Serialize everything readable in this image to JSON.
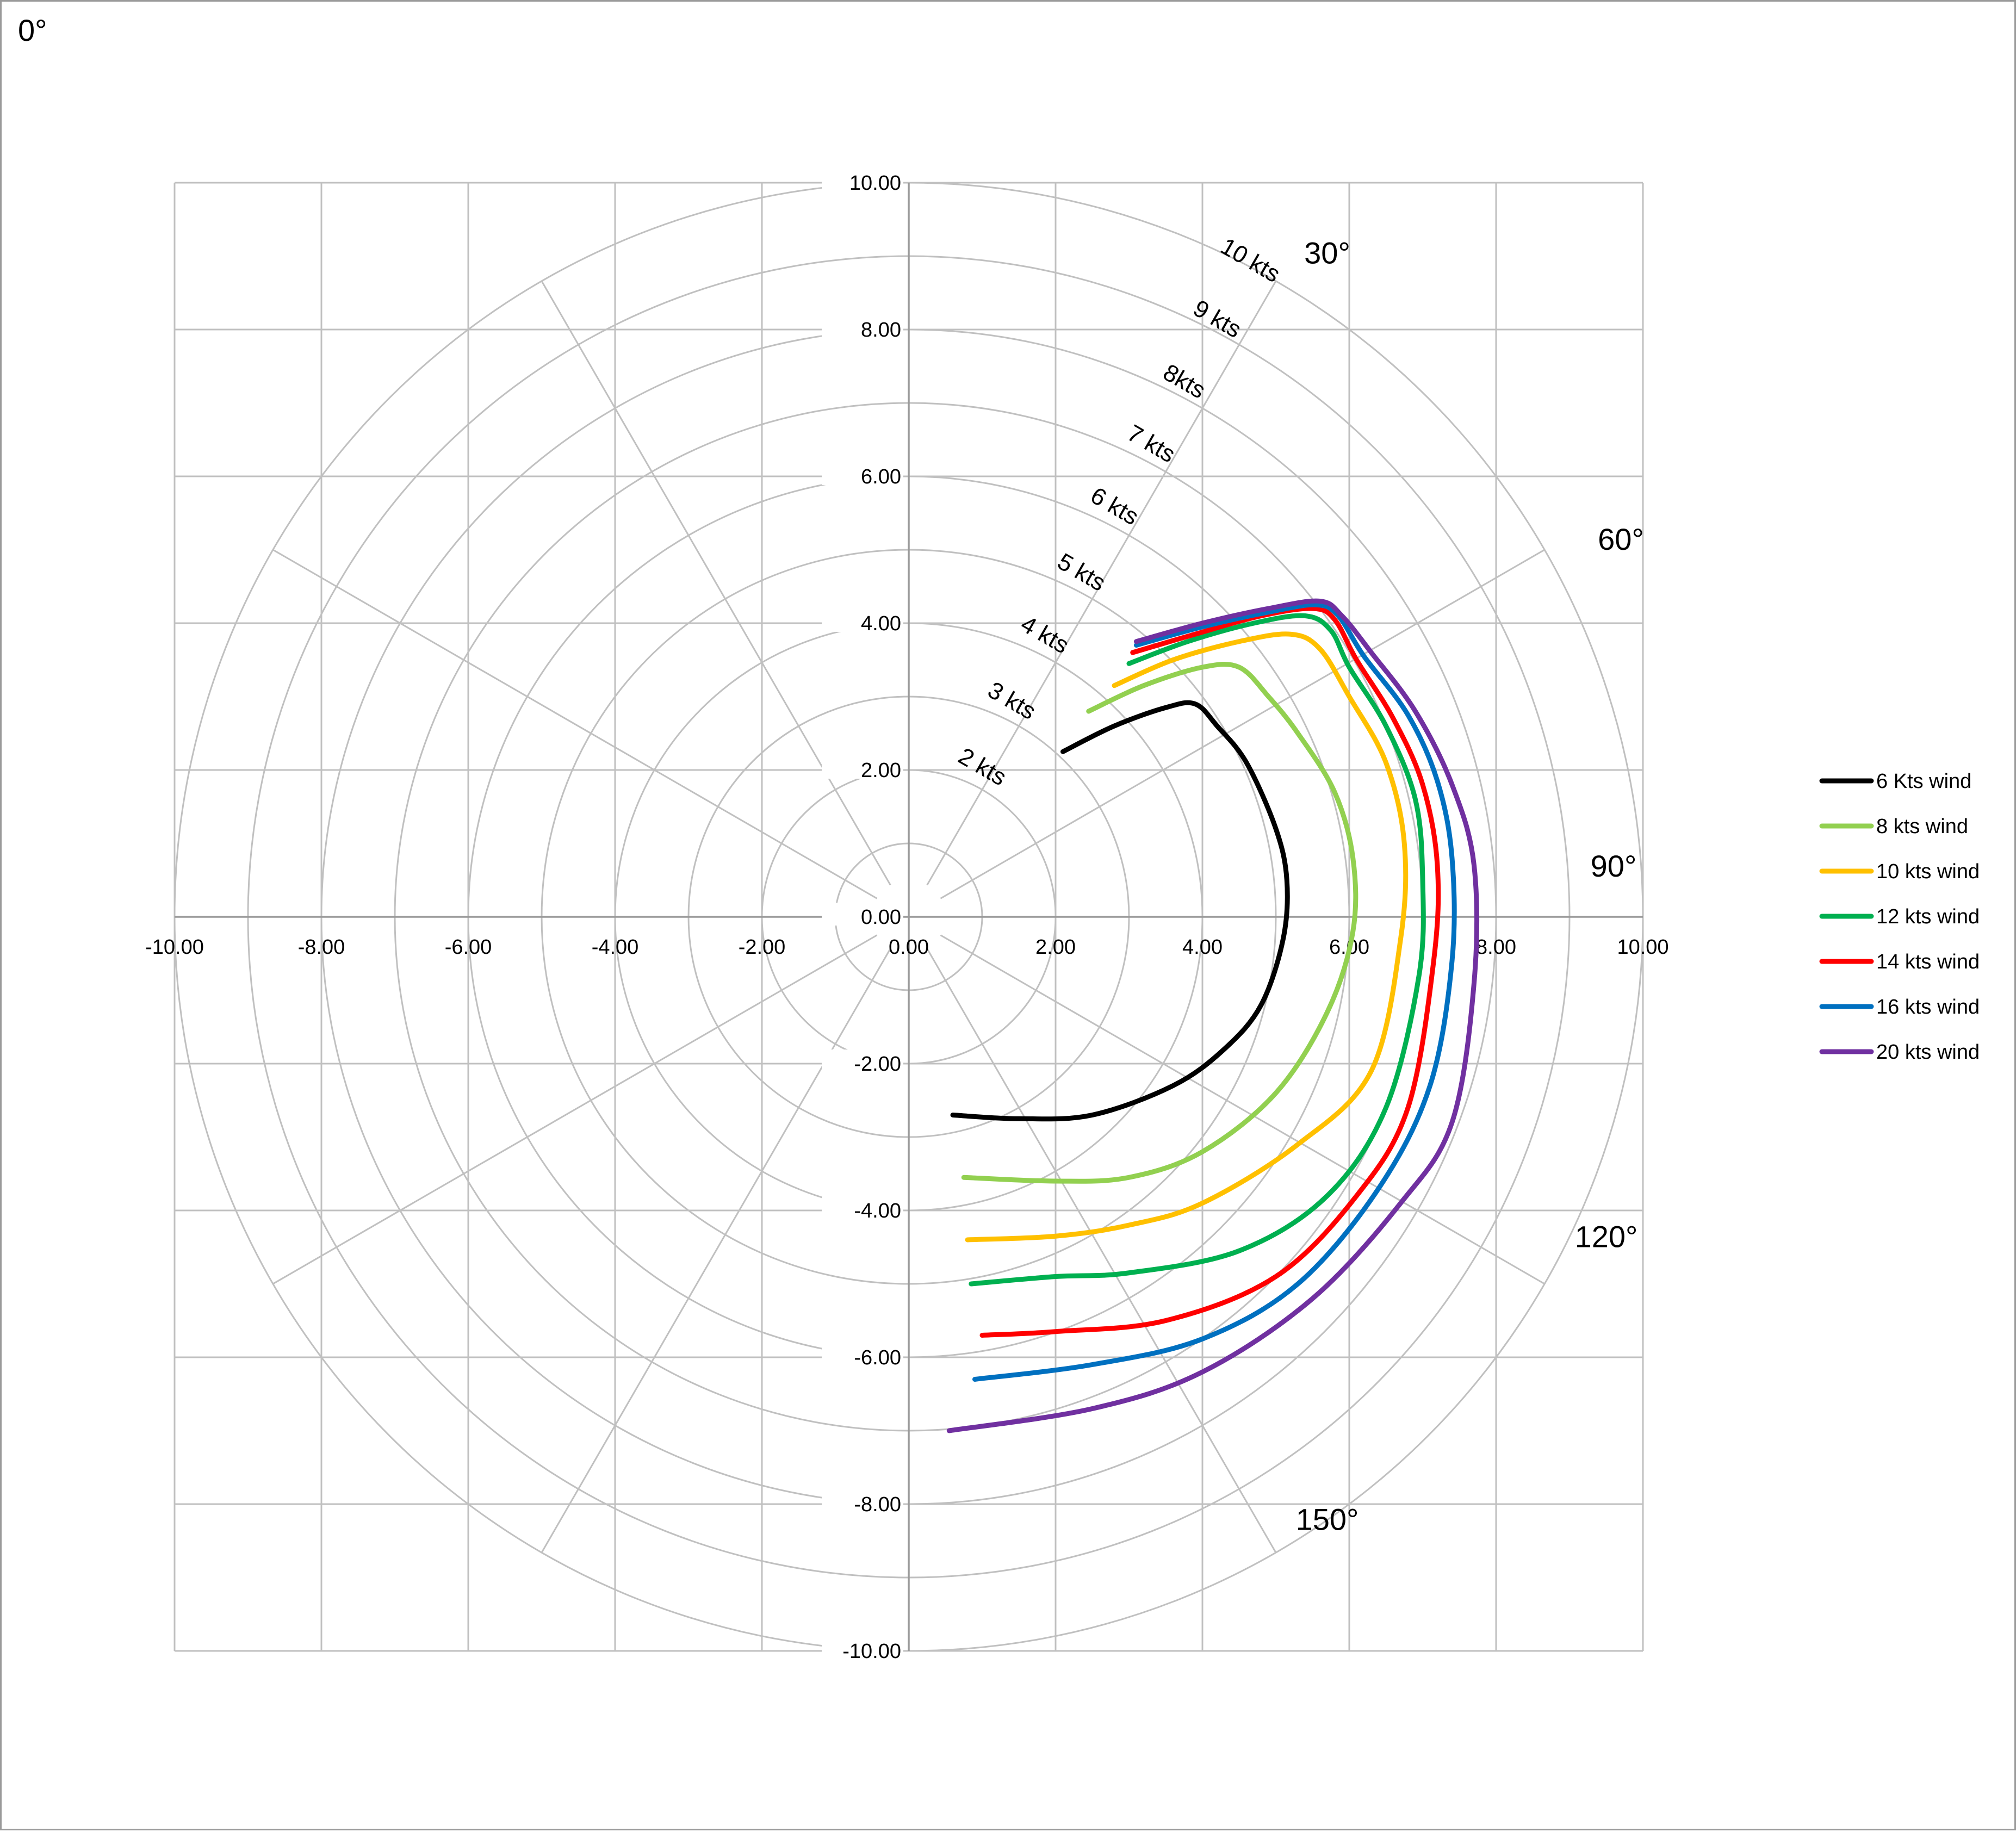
{
  "chart_data": {
    "type": "line",
    "title": "",
    "xlabel": "",
    "ylabel": "",
    "xlim": [
      -10,
      10
    ],
    "ylim": [
      -10,
      10
    ],
    "grid": true,
    "legend_position": "right",
    "x_ticks": [
      "-10.00",
      "-8.00",
      "-6.00",
      "-4.00",
      "-2.00",
      "0.00",
      "2.00",
      "4.00",
      "6.00",
      "8.00",
      "10.00"
    ],
    "y_ticks": [
      "10.00",
      "8.00",
      "6.00",
      "4.00",
      "2.00",
      "0.00",
      "-2.00",
      "-4.00",
      "-6.00",
      "-8.00",
      "-10.00"
    ],
    "corner_label": "0°",
    "angle_labels": [
      {
        "text": "30°",
        "x": 5.7,
        "y": 8.9
      },
      {
        "text": "60°",
        "x": 9.7,
        "y": 5.0
      },
      {
        "text": "90°",
        "x": 9.6,
        "y": 0.55
      },
      {
        "text": "120°",
        "x": 9.5,
        "y": -4.5
      },
      {
        "text": "150°",
        "x": 5.7,
        "y": -8.35
      }
    ],
    "ring_labels": [
      {
        "text": "2 kts",
        "r": 2,
        "x": 0.95,
        "y": 1.95
      },
      {
        "text": "3 kts",
        "r": 3,
        "x": 1.35,
        "y": 2.85
      },
      {
        "text": "4 kts",
        "r": 4,
        "x": 1.8,
        "y": 3.75
      },
      {
        "text": "5 kts",
        "r": 5,
        "x": 2.3,
        "y": 4.6
      },
      {
        "text": "6 kts",
        "r": 6,
        "x": 2.75,
        "y": 5.5
      },
      {
        "text": "7 kts",
        "r": 7,
        "x": 3.25,
        "y": 6.35
      },
      {
        "text": "8kts",
        "r": 8,
        "x": 3.7,
        "y": 7.2
      },
      {
        "text": "9 kts",
        "r": 9,
        "x": 4.15,
        "y": 8.05
      },
      {
        "text": "10 kts",
        "r": 10,
        "x": 4.6,
        "y": 8.85
      }
    ],
    "series": [
      {
        "name": "6 Kts wind",
        "color": "#000000",
        "points": [
          [
            2.1,
            2.25
          ],
          [
            2.8,
            2.6
          ],
          [
            3.5,
            2.85
          ],
          [
            3.9,
            2.9
          ],
          [
            4.2,
            2.6
          ],
          [
            4.6,
            2.1
          ],
          [
            5.0,
            1.2
          ],
          [
            5.15,
            0.5
          ],
          [
            5.1,
            -0.3
          ],
          [
            4.8,
            -1.2
          ],
          [
            4.3,
            -1.8
          ],
          [
            3.6,
            -2.3
          ],
          [
            2.5,
            -2.7
          ],
          [
            1.5,
            -2.75
          ],
          [
            0.6,
            -2.7
          ]
        ]
      },
      {
        "name": "8 kts wind",
        "color": "#92d050",
        "points": [
          [
            2.45,
            2.8
          ],
          [
            3.2,
            3.15
          ],
          [
            4.0,
            3.4
          ],
          [
            4.5,
            3.4
          ],
          [
            4.9,
            3.0
          ],
          [
            5.3,
            2.5
          ],
          [
            5.8,
            1.7
          ],
          [
            6.05,
            0.8
          ],
          [
            6.05,
            -0.2
          ],
          [
            5.7,
            -1.3
          ],
          [
            5.0,
            -2.4
          ],
          [
            4.0,
            -3.2
          ],
          [
            3.0,
            -3.55
          ],
          [
            2.0,
            -3.6
          ],
          [
            0.75,
            -3.55
          ]
        ]
      },
      {
        "name": "10 kts wind",
        "color": "#ffc000",
        "points": [
          [
            2.8,
            3.15
          ],
          [
            3.6,
            3.5
          ],
          [
            4.5,
            3.75
          ],
          [
            5.2,
            3.85
          ],
          [
            5.6,
            3.65
          ],
          [
            6.0,
            3.0
          ],
          [
            6.5,
            2.1
          ],
          [
            6.75,
            1.0
          ],
          [
            6.7,
            -0.3
          ],
          [
            6.3,
            -2.1
          ],
          [
            5.3,
            -3.1
          ],
          [
            4.0,
            -3.9
          ],
          [
            3.0,
            -4.2
          ],
          [
            2.0,
            -4.35
          ],
          [
            0.8,
            -4.4
          ]
        ]
      },
      {
        "name": "12 kts wind",
        "color": "#00b050",
        "points": [
          [
            3.0,
            3.45
          ],
          [
            3.8,
            3.75
          ],
          [
            4.7,
            4.0
          ],
          [
            5.4,
            4.1
          ],
          [
            5.75,
            3.9
          ],
          [
            6.0,
            3.4
          ],
          [
            6.5,
            2.6
          ],
          [
            6.9,
            1.6
          ],
          [
            7.0,
            0.5
          ],
          [
            6.95,
            -0.8
          ],
          [
            6.5,
            -2.6
          ],
          [
            5.7,
            -3.8
          ],
          [
            4.5,
            -4.55
          ],
          [
            3.0,
            -4.85
          ],
          [
            2.0,
            -4.9
          ],
          [
            0.85,
            -5.0
          ]
        ]
      },
      {
        "name": "14 kts wind",
        "color": "#ff0000",
        "points": [
          [
            3.05,
            3.6
          ],
          [
            3.9,
            3.85
          ],
          [
            4.8,
            4.1
          ],
          [
            5.5,
            4.2
          ],
          [
            5.8,
            4.05
          ],
          [
            6.1,
            3.5
          ],
          [
            6.6,
            2.7
          ],
          [
            7.0,
            1.8
          ],
          [
            7.2,
            0.7
          ],
          [
            7.15,
            -0.6
          ],
          [
            6.8,
            -2.6
          ],
          [
            6.1,
            -3.8
          ],
          [
            5.0,
            -4.9
          ],
          [
            3.5,
            -5.5
          ],
          [
            2.0,
            -5.65
          ],
          [
            1.0,
            -5.7
          ]
        ]
      },
      {
        "name": "16 kts wind",
        "color": "#0070c0",
        "points": [
          [
            3.1,
            3.7
          ],
          [
            4.0,
            3.95
          ],
          [
            4.9,
            4.15
          ],
          [
            5.55,
            4.25
          ],
          [
            5.85,
            4.1
          ],
          [
            6.2,
            3.55
          ],
          [
            6.8,
            2.75
          ],
          [
            7.2,
            1.85
          ],
          [
            7.4,
            0.8
          ],
          [
            7.4,
            -0.6
          ],
          [
            7.1,
            -2.3
          ],
          [
            6.4,
            -3.7
          ],
          [
            5.3,
            -5.0
          ],
          [
            4.0,
            -5.75
          ],
          [
            2.5,
            -6.1
          ],
          [
            0.9,
            -6.3
          ]
        ]
      },
      {
        "name": "20 kts wind",
        "color": "#7030a0",
        "points": [
          [
            3.1,
            3.75
          ],
          [
            4.0,
            4.0
          ],
          [
            4.9,
            4.2
          ],
          [
            5.6,
            4.3
          ],
          [
            5.9,
            4.1
          ],
          [
            6.3,
            3.6
          ],
          [
            6.9,
            2.8
          ],
          [
            7.4,
            1.8
          ],
          [
            7.7,
            0.7
          ],
          [
            7.7,
            -0.9
          ],
          [
            7.4,
            -2.8
          ],
          [
            6.7,
            -3.9
          ],
          [
            5.5,
            -5.2
          ],
          [
            4.0,
            -6.2
          ],
          [
            2.5,
            -6.7
          ],
          [
            0.55,
            -7.0
          ]
        ]
      }
    ]
  }
}
